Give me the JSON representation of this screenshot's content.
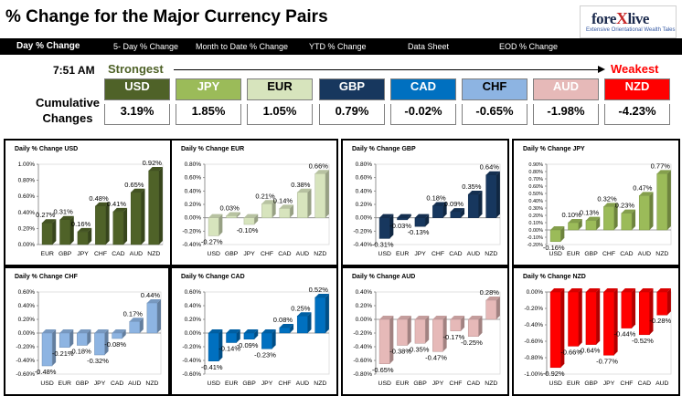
{
  "header": {
    "title": "% Change for the Major Currency Pairs"
  },
  "logo": {
    "text": "forexlive",
    "tagline": "Extensive Orientational Wealth Tales"
  },
  "nav": {
    "items": [
      "Day % Change",
      "5- Day % Change",
      "Month to Date % Change",
      "YTD % Change",
      "Data Sheet",
      "EOD % Change"
    ]
  },
  "summary": {
    "time": "7:51 AM",
    "strongest_label": "Strongest",
    "weakest_label": "Weakest",
    "cumulative_label_1": "Cumulative",
    "cumulative_label_2": "Changes",
    "currencies": [
      {
        "code": "USD",
        "change": "3.19%",
        "bg": "#4f6228",
        "fg": "#ffffff"
      },
      {
        "code": "JPY",
        "change": "1.85%",
        "bg": "#9bbb59",
        "fg": "#ffffff"
      },
      {
        "code": "EUR",
        "change": "1.05%",
        "bg": "#d7e4bd",
        "fg": "#000000"
      },
      {
        "code": "GBP",
        "change": "0.79%",
        "bg": "#17375e",
        "fg": "#ffffff"
      },
      {
        "code": "CAD",
        "change": "-0.02%",
        "bg": "#0070c0",
        "fg": "#ffffff"
      },
      {
        "code": "CHF",
        "change": "-0.65%",
        "bg": "#8db4e2",
        "fg": "#000000"
      },
      {
        "code": "AUD",
        "change": "-1.98%",
        "bg": "#e6b9b8",
        "fg": "#ffffff"
      },
      {
        "code": "NZD",
        "change": "-4.23%",
        "bg": "#ff0000",
        "fg": "#ffffff"
      }
    ]
  },
  "chart_data": [
    {
      "type": "bar",
      "title": "Daily % Change USD",
      "categories": [
        "EUR",
        "GBP",
        "JPY",
        "CHF",
        "CAD",
        "AUD",
        "NZD"
      ],
      "values": [
        0.27,
        0.31,
        0.16,
        0.48,
        0.41,
        0.65,
        0.92
      ],
      "labels": [
        "0.27%",
        "0.31%",
        "0.16%",
        "0.48%",
        "0.41%",
        "0.65%",
        "0.92%"
      ],
      "ylim": [
        0,
        1.0
      ],
      "ticks": [
        0,
        0.2,
        0.4,
        0.6,
        0.8,
        1.0
      ],
      "tick_labels": [
        "0.00%",
        "0.20%",
        "0.40%",
        "0.60%",
        "0.80%",
        "1.00%"
      ],
      "color": "#4f6228"
    },
    {
      "type": "bar",
      "title": "Daily % Change EUR",
      "categories": [
        "USD",
        "GBP",
        "JPY",
        "CHF",
        "CAD",
        "AUD",
        "NZD"
      ],
      "values": [
        -0.27,
        0.03,
        -0.1,
        0.21,
        0.14,
        0.38,
        0.66
      ],
      "labels": [
        "-0.27%",
        "0.03%",
        "-0.10%",
        "0.21%",
        "0.14%",
        "0.38%",
        "0.66%"
      ],
      "ylim": [
        -0.4,
        0.8
      ],
      "ticks": [
        -0.4,
        -0.2,
        0,
        0.2,
        0.4,
        0.6,
        0.8
      ],
      "tick_labels": [
        "-0.40%",
        "-0.20%",
        "0.00%",
        "0.20%",
        "0.40%",
        "0.60%",
        "0.80%"
      ],
      "color": "#d7e4bd"
    },
    {
      "type": "bar",
      "title": "Daily % Change GBP",
      "categories": [
        "USD",
        "EUR",
        "JPY",
        "CHF",
        "CAD",
        "AUD",
        "NZD"
      ],
      "values": [
        -0.31,
        -0.03,
        -0.13,
        0.18,
        0.09,
        0.35,
        0.64
      ],
      "labels": [
        "-0.31%",
        "-0.03%",
        "-0.13%",
        "0.18%",
        "0.09%",
        "0.35%",
        "0.64%"
      ],
      "ylim": [
        -0.4,
        0.8
      ],
      "ticks": [
        -0.4,
        -0.2,
        0,
        0.2,
        0.4,
        0.6,
        0.8
      ],
      "tick_labels": [
        "-0.40%",
        "-0.20%",
        "0.00%",
        "0.20%",
        "0.40%",
        "0.60%",
        "0.80%"
      ],
      "color": "#17375e"
    },
    {
      "type": "bar",
      "title": "Daily % Change JPY",
      "categories": [
        "USD",
        "EUR",
        "GBP",
        "CHF",
        "CAD",
        "AUD",
        "NZD"
      ],
      "values": [
        -0.16,
        0.1,
        0.13,
        0.32,
        0.23,
        0.47,
        0.77
      ],
      "labels": [
        "-0.16%",
        "0.10%",
        "0.13%",
        "0.32%",
        "0.23%",
        "0.47%",
        "0.77%"
      ],
      "ylim": [
        -0.2,
        0.9
      ],
      "ticks": [
        -0.2,
        -0.1,
        0,
        0.1,
        0.2,
        0.3,
        0.4,
        0.5,
        0.6,
        0.7,
        0.8,
        0.9
      ],
      "tick_labels": [
        "-0.20%",
        "-0.10%",
        "0.00%",
        "0.10%",
        "0.20%",
        "0.30%",
        "0.40%",
        "0.50%",
        "0.60%",
        "0.70%",
        "0.80%",
        "0.90%"
      ],
      "color": "#9bbb59"
    },
    {
      "type": "bar",
      "title": "Daily % Change CHF",
      "categories": [
        "USD",
        "EUR",
        "GBP",
        "JPY",
        "CAD",
        "AUD",
        "NZD"
      ],
      "values": [
        -0.48,
        -0.21,
        -0.18,
        -0.32,
        -0.08,
        0.17,
        0.44
      ],
      "labels": [
        "-0.48%",
        "-0.21%",
        "-0.18%",
        "-0.32%",
        "-0.08%",
        "0.17%",
        "0.44%"
      ],
      "ylim": [
        -0.6,
        0.6
      ],
      "ticks": [
        -0.6,
        -0.4,
        -0.2,
        0,
        0.2,
        0.4,
        0.6
      ],
      "tick_labels": [
        "-0.60%",
        "-0.40%",
        "-0.20%",
        "0.00%",
        "0.20%",
        "0.40%",
        "0.60%"
      ],
      "color": "#8db4e2"
    },
    {
      "type": "bar",
      "title": "Daily % Change CAD",
      "categories": [
        "USD",
        "EUR",
        "GBP",
        "JPY",
        "CHF",
        "AUD",
        "NZD"
      ],
      "values": [
        -0.41,
        -0.14,
        -0.09,
        -0.23,
        0.08,
        0.25,
        0.52
      ],
      "labels": [
        "-0.41%",
        "-0.14%",
        "-0.09%",
        "-0.23%",
        "0.08%",
        "0.25%",
        "0.52%"
      ],
      "ylim": [
        -0.6,
        0.6
      ],
      "ticks": [
        -0.6,
        -0.4,
        -0.2,
        0,
        0.2,
        0.4,
        0.6
      ],
      "tick_labels": [
        "-0.60%",
        "-0.40%",
        "-0.20%",
        "0.00%",
        "0.20%",
        "0.40%",
        "0.60%"
      ],
      "color": "#0070c0"
    },
    {
      "type": "bar",
      "title": "Daily % Change AUD",
      "categories": [
        "USD",
        "EUR",
        "GBP",
        "JPY",
        "CHF",
        "CAD",
        "NZD"
      ],
      "values": [
        -0.65,
        -0.38,
        -0.35,
        -0.47,
        -0.17,
        -0.25,
        0.28
      ],
      "labels": [
        "-0.65%",
        "-0.38%",
        "-0.35%",
        "-0.47%",
        "-0.17%",
        "-0.25%",
        "0.28%"
      ],
      "ylim": [
        -0.8,
        0.4
      ],
      "ticks": [
        -0.8,
        -0.6,
        -0.4,
        -0.2,
        0,
        0.2,
        0.4
      ],
      "tick_labels": [
        "-0.80%",
        "-0.60%",
        "-0.40%",
        "-0.20%",
        "0.00%",
        "0.20%",
        "0.40%"
      ],
      "color": "#e6b9b8"
    },
    {
      "type": "bar",
      "title": "Daily % Change NZD",
      "categories": [
        "USD",
        "EUR",
        "GBP",
        "JPY",
        "CHF",
        "CAD",
        "AUD"
      ],
      "values": [
        -0.92,
        -0.66,
        -0.64,
        -0.77,
        -0.44,
        -0.52,
        -0.28
      ],
      "labels": [
        "-0.92%",
        "-0.66%",
        "-0.64%",
        "-0.77%",
        "-0.44%",
        "-0.52%",
        "-0.28%"
      ],
      "ylim": [
        -1.0,
        0
      ],
      "ticks": [
        -1.0,
        -0.8,
        -0.6,
        -0.4,
        -0.2,
        0
      ],
      "tick_labels": [
        "-1.00%",
        "-0.80%",
        "-0.60%",
        "-0.40%",
        "-0.20%",
        "0.00%"
      ],
      "color": "#ff0000"
    }
  ]
}
